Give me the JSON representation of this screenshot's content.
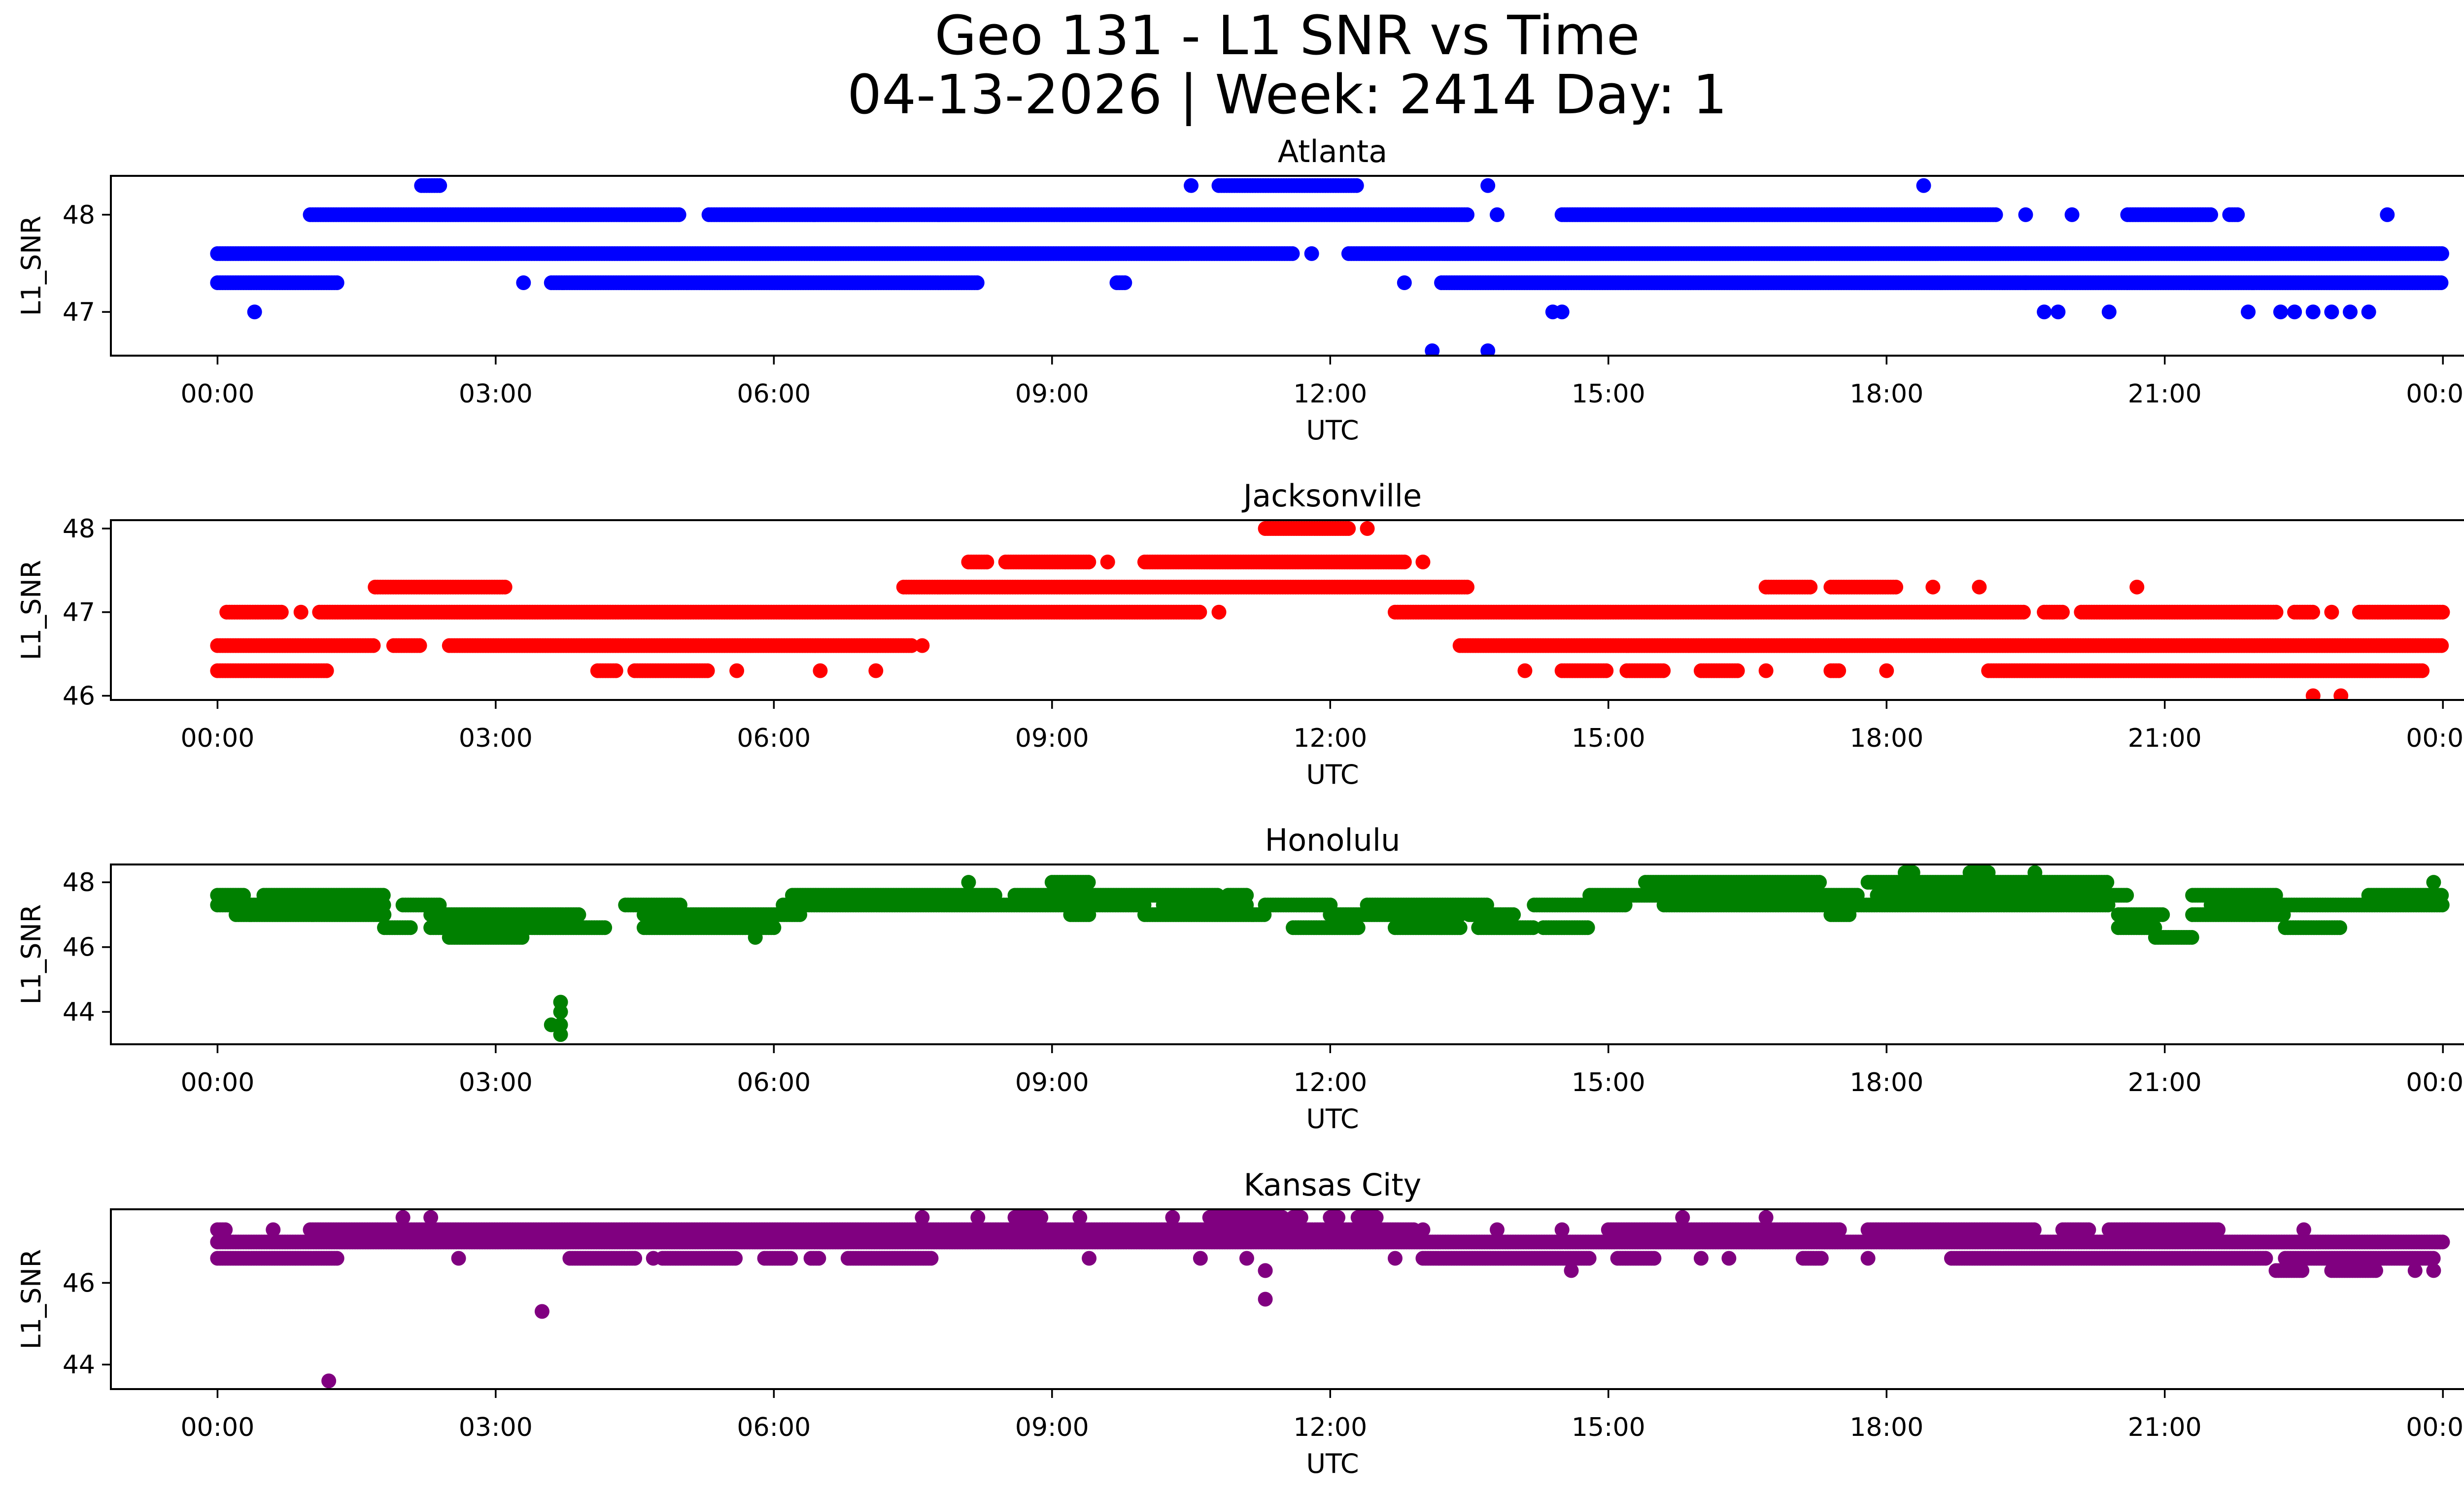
{
  "chart_data": {
    "type": "scatter",
    "title": "Geo 131 - L1 SNR vs Time",
    "subtitle": "04-13-2026 | Week: 2414 Day: 1",
    "x_ticks": [
      "00:00",
      "03:00",
      "06:00",
      "09:00",
      "12:00",
      "15:00",
      "18:00",
      "21:00",
      "00:00"
    ],
    "xlim_hours": [
      -1.15,
      25.2
    ],
    "panels": [
      {
        "name": "Atlanta",
        "color": "#0000ff",
        "xlabel": "UTC",
        "ylabel": "L1_SNR",
        "ylim": [
          46.55,
          48.4
        ],
        "yticks": [
          "47",
          "48"
        ],
        "bands": [
          {
            "y": 47.3,
            "segments": [
              [
                0,
                1.3
              ],
              [
                3.3,
                3.3
              ],
              [
                3.6,
                8.2
              ],
              [
                9.7,
                9.8
              ],
              [
                12.8,
                12.8
              ],
              [
                13.2,
                19.5
              ],
              [
                19.5,
                24.0
              ]
            ],
            "gaps": 0.06
          },
          {
            "y": 47.6,
            "segments": [
              [
                0,
                11.6
              ],
              [
                11.8,
                11.8
              ],
              [
                12.2,
                24.0
              ]
            ],
            "gaps": 0
          },
          {
            "y": 48.0,
            "segments": [
              [
                1.0,
                5.0
              ],
              [
                5.3,
                13.5
              ],
              [
                13.8,
                13.8
              ],
              [
                14.5,
                19.2
              ],
              [
                19.5,
                19.5
              ],
              [
                20.0,
                20.0
              ],
              [
                20.6,
                21.5
              ],
              [
                21.7,
                21.8
              ],
              [
                23.4,
                23.4
              ]
            ],
            "gaps": 0.05
          },
          {
            "y": 48.3,
            "segments": [
              [
                2.2,
                2.4
              ],
              [
                10.5,
                10.5
              ],
              [
                10.8,
                12.3
              ],
              [
                13.7,
                13.7
              ],
              [
                18.4,
                18.4
              ]
            ],
            "gaps": 0
          }
        ],
        "points": [
          [
            0.4,
            47.0
          ],
          [
            13.1,
            46.6
          ],
          [
            13.7,
            46.6
          ],
          [
            14.4,
            47.0
          ],
          [
            14.5,
            47.0
          ],
          [
            19.7,
            47.0
          ],
          [
            19.85,
            47.0
          ],
          [
            20.4,
            47.0
          ],
          [
            21.9,
            47.0
          ],
          [
            22.25,
            47.0
          ],
          [
            22.4,
            47.0
          ],
          [
            22.6,
            47.0
          ],
          [
            22.8,
            47.0
          ],
          [
            23.0,
            47.0
          ],
          [
            23.2,
            47.0
          ]
        ]
      },
      {
        "name": "Jacksonville",
        "color": "#ff0000",
        "xlabel": "UTC",
        "ylabel": "L1_SNR",
        "ylim": [
          45.95,
          48.1
        ],
        "yticks": [
          "46",
          "47",
          "48"
        ],
        "bands": [
          {
            "y": 46.3,
            "segments": [
              [
                0,
                1.2
              ],
              [
                4.1,
                4.3
              ],
              [
                4.5,
                5.3
              ],
              [
                5.6,
                5.6
              ],
              [
                6.5,
                6.5
              ],
              [
                7.1,
                7.1
              ],
              [
                14.1,
                14.1
              ],
              [
                14.5,
                15.0
              ],
              [
                15.2,
                15.6
              ],
              [
                16.0,
                16.4
              ],
              [
                16.7,
                16.7
              ],
              [
                17.4,
                17.5
              ],
              [
                18.0,
                18.0
              ],
              [
                19.1,
                23.8
              ]
            ],
            "gaps": 0.05
          },
          {
            "y": 46.6,
            "segments": [
              [
                0,
                1.7
              ],
              [
                1.9,
                2.2
              ],
              [
                2.5,
                7.5
              ],
              [
                7.6,
                7.6
              ],
              [
                13.4,
                24.0
              ]
            ],
            "gaps": 0.03
          },
          {
            "y": 47.0,
            "segments": [
              [
                0.1,
                0.7
              ],
              [
                0.9,
                0.9
              ],
              [
                1.1,
                10.6
              ],
              [
                10.8,
                10.8
              ],
              [
                12.7,
                19.5
              ],
              [
                19.7,
                19.9
              ],
              [
                20.1,
                22.2
              ],
              [
                22.4,
                22.6
              ],
              [
                22.8,
                22.8
              ],
              [
                23.1,
                24.0
              ]
            ],
            "gaps": 0.03
          },
          {
            "y": 47.3,
            "segments": [
              [
                1.7,
                3.1
              ],
              [
                7.4,
                13.5
              ],
              [
                16.7,
                17.2
              ],
              [
                17.4,
                18.1
              ],
              [
                18.5,
                18.5
              ],
              [
                19.0,
                19.0
              ],
              [
                20.7,
                20.7
              ]
            ],
            "gaps": 0.04
          },
          {
            "y": 47.6,
            "segments": [
              [
                8.1,
                8.3
              ],
              [
                8.5,
                9.4
              ],
              [
                9.6,
                9.6
              ],
              [
                10.0,
                12.8
              ],
              [
                13.0,
                13.0
              ]
            ],
            "gaps": 0.04
          },
          {
            "y": 48.0,
            "segments": [
              [
                11.3,
                12.2
              ],
              [
                12.4,
                12.4
              ]
            ],
            "gaps": 0
          }
        ],
        "points": [
          [
            22.6,
            46.0
          ],
          [
            22.9,
            46.0
          ]
        ]
      },
      {
        "name": "Honolulu",
        "color": "#008000",
        "xlabel": "UTC",
        "ylabel": "L1_SNR",
        "ylim": [
          43.0,
          48.55
        ],
        "yticks": [
          "44",
          "46",
          "48"
        ],
        "bands": [
          {
            "y": 47.3,
            "segments": [
              [
                0,
                1.8
              ],
              [
                2.0,
                2.4
              ],
              [
                4.4,
                5.0
              ],
              [
                6.1,
                10.0
              ],
              [
                10.2,
                11.1
              ],
              [
                11.3,
                12.0
              ],
              [
                12.4,
                13.7
              ],
              [
                14.2,
                15.2
              ],
              [
                15.6,
                20.4
              ],
              [
                21.5,
                24.0
              ]
            ],
            "gaps": 0.02
          },
          {
            "y": 47.6,
            "segments": [
              [
                0,
                0.3
              ],
              [
                0.5,
                1.8
              ],
              [
                6.2,
                8.4
              ],
              [
                8.6,
                10.8
              ],
              [
                10.9,
                11.1
              ],
              [
                14.8,
                17.7
              ],
              [
                17.9,
                20.6
              ],
              [
                21.3,
                22.2
              ],
              [
                23.2,
                24.0
              ]
            ],
            "gaps": 0.02
          },
          {
            "y": 47.0,
            "segments": [
              [
                0.2,
                1.8
              ],
              [
                2.3,
                3.9
              ],
              [
                4.6,
                6.3
              ],
              [
                9.2,
                9.4
              ],
              [
                10.0,
                11.3
              ],
              [
                12.0,
                13.4
              ],
              [
                13.5,
                14.0
              ],
              [
                17.4,
                17.6
              ],
              [
                20.5,
                21.0
              ],
              [
                21.3,
                22.3
              ]
            ],
            "gaps": 0.02
          },
          {
            "y": 46.6,
            "segments": [
              [
                1.8,
                2.1
              ],
              [
                2.3,
                4.2
              ],
              [
                4.6,
                6.0
              ],
              [
                11.6,
                12.3
              ],
              [
                12.7,
                13.4
              ],
              [
                13.6,
                14.2
              ],
              [
                14.3,
                14.8
              ],
              [
                20.5,
                20.9
              ],
              [
                22.3,
                22.9
              ]
            ],
            "gaps": 0.02
          },
          {
            "y": 46.3,
            "segments": [
              [
                2.5,
                3.3
              ],
              [
                5.8,
                5.8
              ],
              [
                20.9,
                21.3
              ]
            ],
            "gaps": 0.05
          },
          {
            "y": 48.0,
            "segments": [
              [
                8.1,
                8.1
              ],
              [
                9.0,
                9.4
              ],
              [
                15.4,
                17.3
              ],
              [
                17.8,
                20.4
              ],
              [
                23.9,
                23.9
              ]
            ],
            "gaps": 0.02
          },
          {
            "y": 48.3,
            "segments": [
              [
                18.2,
                18.3
              ],
              [
                18.9,
                19.1
              ],
              [
                19.6,
                19.6
              ]
            ],
            "gaps": 0
          }
        ],
        "points": [
          [
            3.7,
            43.3
          ],
          [
            3.7,
            43.6
          ],
          [
            3.7,
            44.0
          ],
          [
            3.7,
            44.3
          ],
          [
            3.6,
            43.6
          ]
        ]
      },
      {
        "name": "Kansas City",
        "color": "#800080",
        "xlabel": "UTC",
        "ylabel": "L1_SNR",
        "ylim": [
          43.4,
          47.8
        ],
        "yticks": [
          "44",
          "46"
        ],
        "bands": [
          {
            "y": 46.6,
            "segments": [
              [
                0,
                1.3
              ],
              [
                2.6,
                2.6
              ],
              [
                3.8,
                4.5
              ],
              [
                4.7,
                4.7
              ],
              [
                4.8,
                5.6
              ],
              [
                5.9,
                6.2
              ],
              [
                6.4,
                6.5
              ],
              [
                6.8,
                7.7
              ],
              [
                9.4,
                9.4
              ],
              [
                10.6,
                10.6
              ],
              [
                11.1,
                11.1
              ],
              [
                12.7,
                12.7
              ],
              [
                13.0,
                14.8
              ],
              [
                15.1,
                15.5
              ],
              [
                16.0,
                16.0
              ],
              [
                16.3,
                16.3
              ],
              [
                17.1,
                17.3
              ],
              [
                17.8,
                17.8
              ],
              [
                18.7,
                22.1
              ],
              [
                22.3,
                23.9
              ]
            ],
            "gaps": 0.04
          },
          {
            "y": 47.0,
            "segments": [
              [
                0,
                24.0
              ]
            ],
            "gaps": 0
          },
          {
            "y": 47.3,
            "segments": [
              [
                0,
                0.1
              ],
              [
                0.6,
                0.6
              ],
              [
                1.0,
                12.9
              ],
              [
                13.0,
                13.0
              ],
              [
                13.8,
                13.8
              ],
              [
                14.5,
                14.5
              ],
              [
                15.0,
                17.5
              ],
              [
                17.8,
                19.6
              ],
              [
                19.9,
                20.2
              ],
              [
                20.4,
                21.6
              ],
              [
                22.5,
                22.5
              ]
            ],
            "gaps": 0.01
          },
          {
            "y": 47.6,
            "segments": [
              [
                2.0,
                2.0
              ],
              [
                2.3,
                2.3
              ],
              [
                7.6,
                7.6
              ],
              [
                8.2,
                8.2
              ],
              [
                8.6,
                8.9
              ],
              [
                9.3,
                9.3
              ],
              [
                10.3,
                10.3
              ],
              [
                10.7,
                11.5
              ],
              [
                11.6,
                11.7
              ],
              [
                12.0,
                12.1
              ],
              [
                12.3,
                12.5
              ],
              [
                15.8,
                15.8
              ],
              [
                16.7,
                16.7
              ]
            ],
            "gaps": 0.05
          },
          {
            "y": 46.3,
            "segments": [
              [
                11.3,
                11.3
              ],
              [
                14.6,
                14.6
              ],
              [
                22.2,
                22.5
              ],
              [
                22.8,
                23.3
              ],
              [
                23.7,
                23.7
              ],
              [
                23.9,
                23.9
              ]
            ],
            "gaps": 0.04
          }
        ],
        "points": [
          [
            1.2,
            43.6
          ],
          [
            3.5,
            45.3
          ],
          [
            11.3,
            45.6
          ],
          [
            11.3,
            46.3
          ]
        ]
      }
    ]
  }
}
